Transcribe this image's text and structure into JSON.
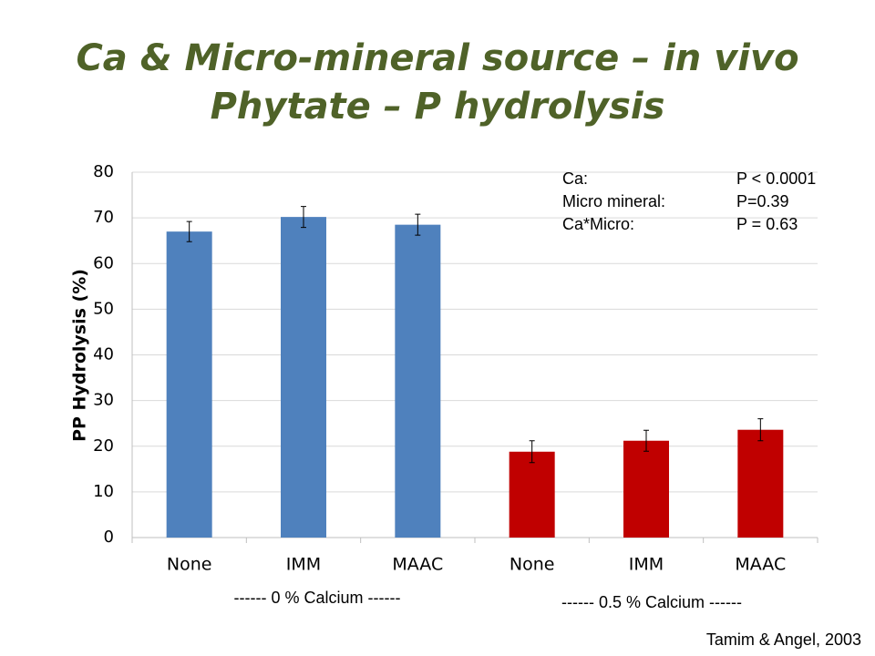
{
  "chart_data": {
    "type": "bar",
    "title": [
      "Ca & Micro-mineral source – in vivo",
      "Phytate – P hydrolysis"
    ],
    "y_label": "PP Hydrolysis (%)",
    "categories": [
      "None",
      "IMM",
      "MAAC",
      "None",
      "IMM",
      "MAAC"
    ],
    "values": [
      67,
      70.2,
      68.5,
      18.8,
      21.2,
      23.6
    ],
    "errors": [
      2.2,
      2.3,
      2.3,
      2.4,
      2.3,
      2.4
    ],
    "colors": [
      "#4f81bd",
      "#4f81bd",
      "#4f81bd",
      "#c00000",
      "#c00000",
      "#c00000"
    ],
    "groups": [
      "------ 0 % Calcium ------",
      "------ 0.5 % Calcium ------"
    ],
    "ylim": [
      0,
      80
    ],
    "yticks": [
      0,
      10,
      20,
      30,
      40,
      50,
      60,
      70,
      80
    ],
    "grid": true,
    "stats": [
      [
        "Ca:",
        "P < 0.0001"
      ],
      [
        "Micro mineral:",
        "P=0.39"
      ],
      [
        "Ca*Micro:",
        "P = 0.63"
      ]
    ],
    "source": "Tamim & Angel, 2003"
  }
}
